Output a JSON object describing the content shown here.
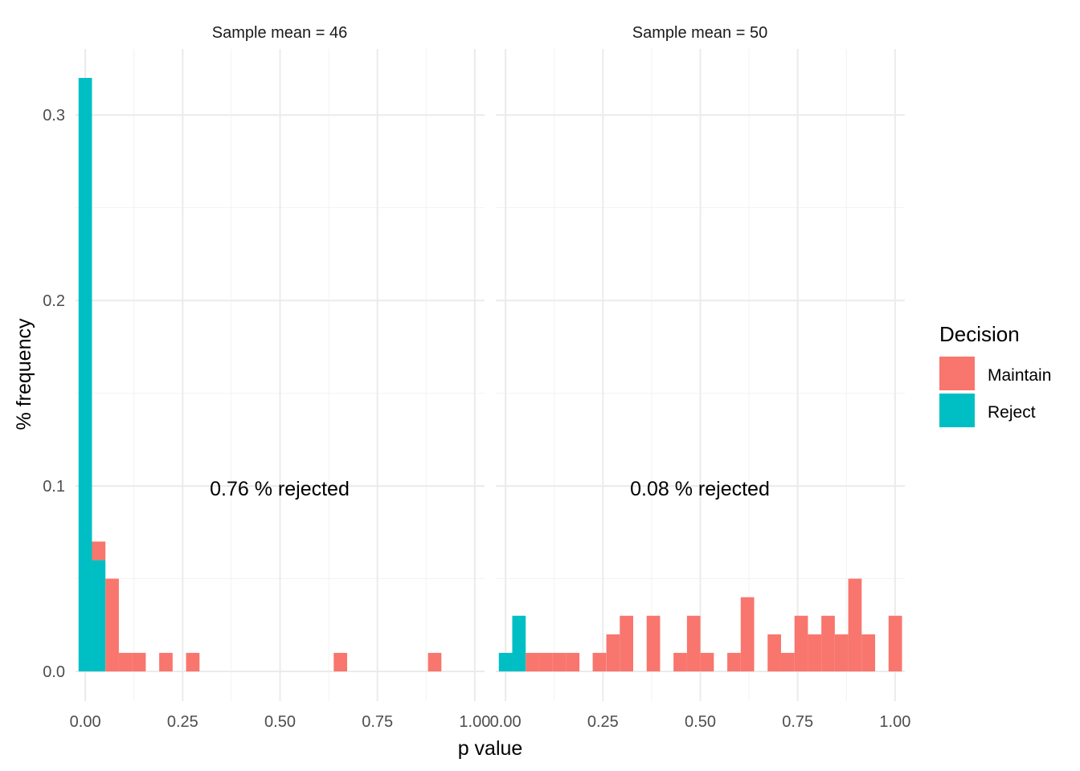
{
  "chart_data": {
    "type": "bar",
    "xlabel": "p value",
    "ylabel": "% frequency",
    "xlim": [
      -0.025,
      1.025
    ],
    "ylim": [
      0,
      0.32
    ],
    "x_ticks": [
      "0.00",
      "0.25",
      "0.50",
      "0.75",
      "1.00"
    ],
    "y_ticks": [
      "0.0",
      "0.1",
      "0.2",
      "0.3"
    ],
    "grid": true,
    "legend": {
      "title": "Decision",
      "position": "right",
      "entries": [
        {
          "name": "Maintain",
          "color": "#F8766D"
        },
        {
          "name": "Reject",
          "color": "#00BFC4"
        }
      ]
    },
    "bin_width": 0.0345,
    "panels": [
      {
        "title": "Sample mean = 46",
        "annotation": "0.76 % rejected",
        "bars": [
          {
            "x": 0.0,
            "reject": 0.32,
            "maintain": 0.0
          },
          {
            "x": 0.0345,
            "reject": 0.06,
            "maintain": 0.01
          },
          {
            "x": 0.069,
            "reject": 0.0,
            "maintain": 0.05
          },
          {
            "x": 0.1035,
            "reject": 0.0,
            "maintain": 0.01
          },
          {
            "x": 0.138,
            "reject": 0.0,
            "maintain": 0.01
          },
          {
            "x": 0.207,
            "reject": 0.0,
            "maintain": 0.01
          },
          {
            "x": 0.276,
            "reject": 0.0,
            "maintain": 0.01
          },
          {
            "x": 0.655,
            "reject": 0.0,
            "maintain": 0.01
          },
          {
            "x": 0.897,
            "reject": 0.0,
            "maintain": 0.01
          }
        ]
      },
      {
        "title": "Sample mean = 50",
        "annotation": "0.08 % rejected",
        "bars": [
          {
            "x": 0.0,
            "reject": 0.01,
            "maintain": 0.0
          },
          {
            "x": 0.0345,
            "reject": 0.03,
            "maintain": 0.0
          },
          {
            "x": 0.069,
            "reject": 0.0,
            "maintain": 0.01
          },
          {
            "x": 0.1035,
            "reject": 0.0,
            "maintain": 0.01
          },
          {
            "x": 0.138,
            "reject": 0.0,
            "maintain": 0.01
          },
          {
            "x": 0.1725,
            "reject": 0.0,
            "maintain": 0.01
          },
          {
            "x": 0.241,
            "reject": 0.0,
            "maintain": 0.01
          },
          {
            "x": 0.276,
            "reject": 0.0,
            "maintain": 0.02
          },
          {
            "x": 0.3105,
            "reject": 0.0,
            "maintain": 0.03
          },
          {
            "x": 0.3795,
            "reject": 0.0,
            "maintain": 0.03
          },
          {
            "x": 0.4485,
            "reject": 0.0,
            "maintain": 0.01
          },
          {
            "x": 0.483,
            "reject": 0.0,
            "maintain": 0.03
          },
          {
            "x": 0.5175,
            "reject": 0.0,
            "maintain": 0.01
          },
          {
            "x": 0.5865,
            "reject": 0.0,
            "maintain": 0.01
          },
          {
            "x": 0.621,
            "reject": 0.0,
            "maintain": 0.04
          },
          {
            "x": 0.69,
            "reject": 0.0,
            "maintain": 0.02
          },
          {
            "x": 0.7245,
            "reject": 0.0,
            "maintain": 0.01
          },
          {
            "x": 0.759,
            "reject": 0.0,
            "maintain": 0.03
          },
          {
            "x": 0.7935,
            "reject": 0.0,
            "maintain": 0.02
          },
          {
            "x": 0.828,
            "reject": 0.0,
            "maintain": 0.03
          },
          {
            "x": 0.8625,
            "reject": 0.0,
            "maintain": 0.02
          },
          {
            "x": 0.897,
            "reject": 0.0,
            "maintain": 0.05
          },
          {
            "x": 0.9315,
            "reject": 0.0,
            "maintain": 0.02
          },
          {
            "x": 1.0005,
            "reject": 0.0,
            "maintain": 0.03
          }
        ]
      }
    ]
  }
}
